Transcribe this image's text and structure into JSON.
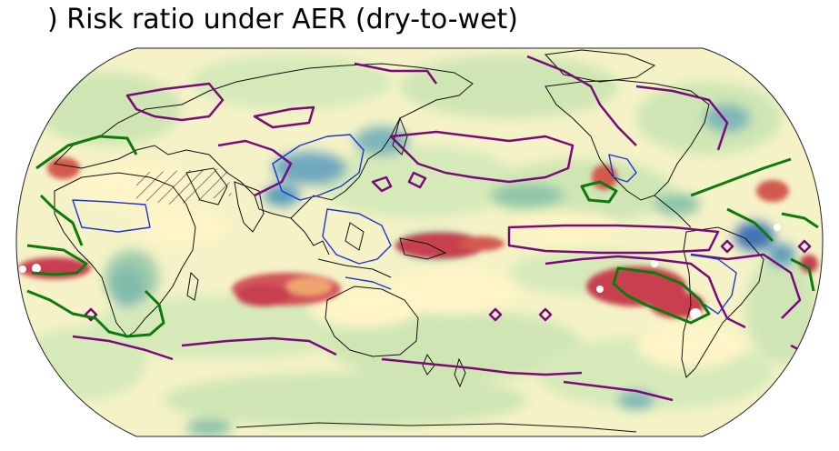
{
  "figure": {
    "title": ") Risk ratio under AER (dry-to-wet)"
  },
  "map": {
    "projection": "Robinson-like global ellipse, Pacific-centred",
    "colormap": [
      "#c8404f",
      "#fff5c8",
      "#cfe6b4",
      "#6fb7a3",
      "#3f74b4"
    ],
    "contour_colors": {
      "purple": "#7a0a7a",
      "green": "#0d7a0d",
      "blue": "#1c35d2"
    },
    "hatching": "diagonal hatch over northern Africa / Arabia"
  }
}
